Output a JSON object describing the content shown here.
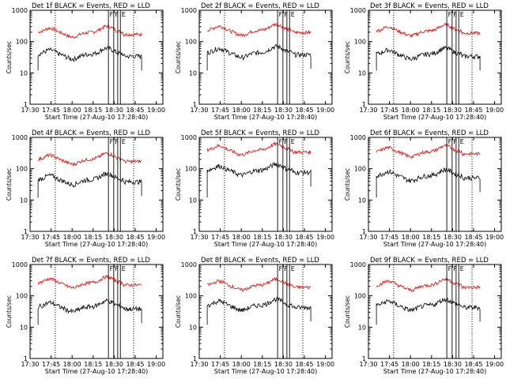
{
  "chart_data": [
    {
      "type": "line",
      "title": "Det 1f BLACK = Events, RED = LLD",
      "xlabel": "Start Time (27-Aug-10 17:28:40)",
      "ylabel": "Counts/sec",
      "x_ticks": [
        "17:30",
        "17:45",
        "18:00",
        "18:15",
        "18:30",
        "18:45",
        "19:00"
      ],
      "y_ticks": [
        "1",
        "10",
        "100",
        "1000"
      ],
      "ylim": [
        1,
        1000
      ],
      "ygrid_log": true,
      "markers": [
        "F",
        "F",
        "E"
      ],
      "series": [
        {
          "name": "RED = LLD",
          "color": "#ff0000",
          "base": 200
        },
        {
          "name": "BLACK = Events",
          "color": "#000000",
          "base": 40
        }
      ]
    },
    {
      "type": "line",
      "title": "Det 2f BLACK = Events, RED = LLD",
      "xlabel": "Start Time (27-Aug-10 17:28:40)",
      "ylabel": "Counts/sec",
      "x_ticks": [
        "17:30",
        "17:45",
        "18:00",
        "18:15",
        "18:30",
        "18:45",
        "19:00"
      ],
      "y_ticks": [
        "1",
        "10",
        "100",
        "1000"
      ],
      "ylim": [
        1,
        1000
      ],
      "ygrid_log": true,
      "markers": [
        "F",
        "F",
        "E"
      ],
      "series": [
        {
          "name": "RED = LLD",
          "color": "#ff0000",
          "base": 230
        },
        {
          "name": "BLACK = Events",
          "color": "#000000",
          "base": 45
        }
      ]
    },
    {
      "type": "line",
      "title": "Det 3f BLACK = Events, RED = LLD",
      "xlabel": "Start Time (27-Aug-10 17:28:40)",
      "ylabel": "Counts/sec",
      "x_ticks": [
        "17:30",
        "17:45",
        "18:00",
        "18:15",
        "18:30",
        "18:45",
        "19:00"
      ],
      "y_ticks": [
        "1",
        "10",
        "100",
        "1000"
      ],
      "ylim": [
        1,
        1000
      ],
      "ygrid_log": true,
      "markers": [
        "F",
        "F",
        "E"
      ],
      "series": [
        {
          "name": "RED = LLD",
          "color": "#ff0000",
          "base": 220
        },
        {
          "name": "BLACK = Events",
          "color": "#000000",
          "base": 40
        }
      ]
    },
    {
      "type": "line",
      "title": "Det 4f BLACK = Events, RED = LLD",
      "xlabel": "Start Time (27-Aug-10 17:28:40)",
      "ylabel": "Counts/sec",
      "x_ticks": [
        "17:30",
        "17:45",
        "18:00",
        "18:15",
        "18:30",
        "18:45",
        "19:00"
      ],
      "y_ticks": [
        "1",
        "10",
        "100",
        "1000"
      ],
      "ylim": [
        1,
        1000
      ],
      "ygrid_log": true,
      "markers": [
        "F",
        "F",
        "E"
      ],
      "series": [
        {
          "name": "RED = LLD",
          "color": "#ff0000",
          "base": 200
        },
        {
          "name": "BLACK = Events",
          "color": "#000000",
          "base": 45
        }
      ]
    },
    {
      "type": "line",
      "title": "Det 5f BLACK = Events, RED = LLD",
      "xlabel": "Start Time (27-Aug-10 17:28:40)",
      "ylabel": "Counts/sec",
      "x_ticks": [
        "17:30",
        "17:45",
        "18:00",
        "18:15",
        "18:30",
        "18:45",
        "19:00"
      ],
      "y_ticks": [
        "1",
        "10",
        "100",
        "1000"
      ],
      "ylim": [
        1,
        1000
      ],
      "ygrid_log": true,
      "markers": [
        "F",
        "F",
        "E"
      ],
      "series": [
        {
          "name": "RED = LLD",
          "color": "#ff0000",
          "base": 400
        },
        {
          "name": "BLACK = Events",
          "color": "#000000",
          "base": 90
        }
      ]
    },
    {
      "type": "line",
      "title": "Det 6f BLACK = Events, RED = LLD",
      "xlabel": "Start Time (27-Aug-10 17:28:40)",
      "ylabel": "Counts/sec",
      "x_ticks": [
        "17:30",
        "17:45",
        "18:00",
        "18:15",
        "18:30",
        "18:45",
        "19:00"
      ],
      "y_ticks": [
        "1",
        "10",
        "100",
        "1000"
      ],
      "ylim": [
        1,
        1000
      ],
      "ygrid_log": true,
      "markers": [
        "F",
        "F",
        "E"
      ],
      "series": [
        {
          "name": "RED = LLD",
          "color": "#ff0000",
          "base": 350
        },
        {
          "name": "BLACK = Events",
          "color": "#000000",
          "base": 60
        }
      ]
    },
    {
      "type": "line",
      "title": "Det 7f BLACK = Events, RED = LLD",
      "xlabel": "Start Time (27-Aug-10 17:28:40)",
      "ylabel": "Counts/sec",
      "x_ticks": [
        "17:30",
        "17:45",
        "18:00",
        "18:15",
        "18:30",
        "18:45",
        "19:00"
      ],
      "y_ticks": [
        "1",
        "10",
        "100",
        "1000"
      ],
      "ylim": [
        1,
        1000
      ],
      "ygrid_log": true,
      "markers": [
        "F",
        "F",
        "E"
      ],
      "series": [
        {
          "name": "RED = LLD",
          "color": "#ff0000",
          "base": 260
        },
        {
          "name": "BLACK = Events",
          "color": "#000000",
          "base": 45
        }
      ]
    },
    {
      "type": "line",
      "title": "Det 8f BLACK = Events, RED = LLD",
      "xlabel": "Start Time (27-Aug-10 17:28:40)",
      "ylabel": "Counts/sec",
      "x_ticks": [
        "17:30",
        "17:45",
        "18:00",
        "18:15",
        "18:30",
        "18:45",
        "19:00"
      ],
      "y_ticks": [
        "1",
        "10",
        "100",
        "1000"
      ],
      "ylim": [
        1,
        1000
      ],
      "ygrid_log": true,
      "markers": [
        "F",
        "F",
        "E"
      ],
      "series": [
        {
          "name": "RED = LLD",
          "color": "#ff0000",
          "base": 220
        },
        {
          "name": "BLACK = Events",
          "color": "#000000",
          "base": 50
        }
      ]
    },
    {
      "type": "line",
      "title": "Det 9f BLACK = Events, RED = LLD",
      "xlabel": "Start Time (27-Aug-10 17:28:40)",
      "ylabel": "Counts/sec",
      "x_ticks": [
        "17:30",
        "17:45",
        "18:00",
        "18:15",
        "18:30",
        "18:45",
        "19:00"
      ],
      "y_ticks": [
        "1",
        "10",
        "100",
        "1000"
      ],
      "ylim": [
        1,
        1000
      ],
      "ygrid_log": true,
      "markers": [
        "F",
        "F",
        "E"
      ],
      "series": [
        {
          "name": "RED = LLD",
          "color": "#ff0000",
          "base": 220
        },
        {
          "name": "BLACK = Events",
          "color": "#000000",
          "base": 50
        }
      ]
    }
  ]
}
